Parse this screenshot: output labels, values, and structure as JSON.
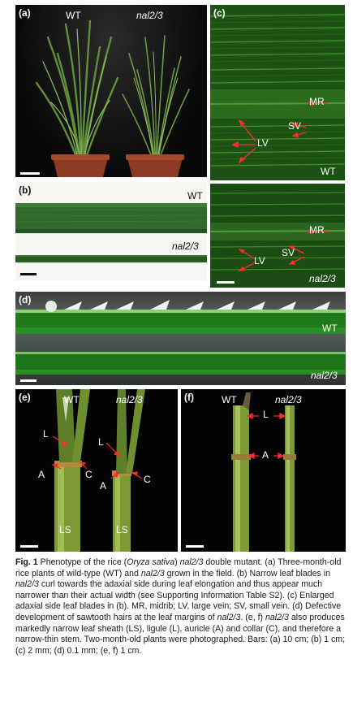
{
  "panels": {
    "a": {
      "label": "(a)",
      "labels": {
        "wt": "WT",
        "mutant": "nal2/3"
      }
    },
    "b": {
      "label": "(b)",
      "labels": {
        "wt": "WT",
        "mutant": "nal2/3"
      }
    },
    "c": {
      "label": "(c)",
      "top_annotations": {
        "mr": "MR",
        "sv": "SV",
        "lv": "LV",
        "genotype": "WT"
      },
      "bottom_annotations": {
        "mr": "MR",
        "sv": "SV",
        "lv": "LV",
        "genotype": "nal2/3"
      }
    },
    "d": {
      "label": "(d)",
      "labels": {
        "wt": "WT",
        "mutant": "nal2/3"
      }
    },
    "e": {
      "label": "(e)",
      "labels": {
        "wt": "WT",
        "mutant": "nal2/3"
      },
      "annotations": {
        "ligule_left": "L",
        "ligule_right": "L",
        "auricle_left": "A",
        "auricle_right": "A",
        "collar_left": "C",
        "collar_right": "C",
        "sheath_left": "LS",
        "sheath_right": "LS"
      }
    },
    "f": {
      "label": "(f)",
      "labels": {
        "wt": "WT",
        "mutant": "nal2/3"
      },
      "annotations": {
        "ligule": "L",
        "auricle": "A"
      }
    }
  },
  "caption": {
    "fig_number": "Fig. 1",
    "segments": [
      {
        "t": "Phenotype of the rice (",
        "i": false
      },
      {
        "t": "Oryza sativa",
        "i": true
      },
      {
        "t": ") ",
        "i": false
      },
      {
        "t": "nal2/3",
        "i": true
      },
      {
        "t": " double mutant. (a) Three-month-old rice plants of wild-type (WT) and ",
        "i": false
      },
      {
        "t": "nal2/3",
        "i": true
      },
      {
        "t": " grown in the field. (b) Narrow leaf blades in ",
        "i": false
      },
      {
        "t": "nal2/3",
        "i": true
      },
      {
        "t": " curl towards the adaxial side during leaf elongation and thus appear much narrower than their actual width (see Supporting Information Table S2). (c) Enlarged adaxial side leaf blades in (b). MR, midrib; LV, large vein; SV, small vein. (d) Defective development of sawtooth hairs at the leaf margins of ",
        "i": false
      },
      {
        "t": "nal2/3",
        "i": true
      },
      {
        "t": ". (e, f) ",
        "i": false
      },
      {
        "t": "nal2/3",
        "i": true
      },
      {
        "t": " also produces markedly narrow leaf sheath (LS), ligule (L), auricle (A) and collar (C), and therefore a narrow-thin stem. Two-month-old plants were photographed. Bars: (a) 10 cm; (b) 1 cm; (c) 2 mm; (d) 0.1 mm; (e, f) 1 cm.",
        "i": false
      }
    ]
  }
}
